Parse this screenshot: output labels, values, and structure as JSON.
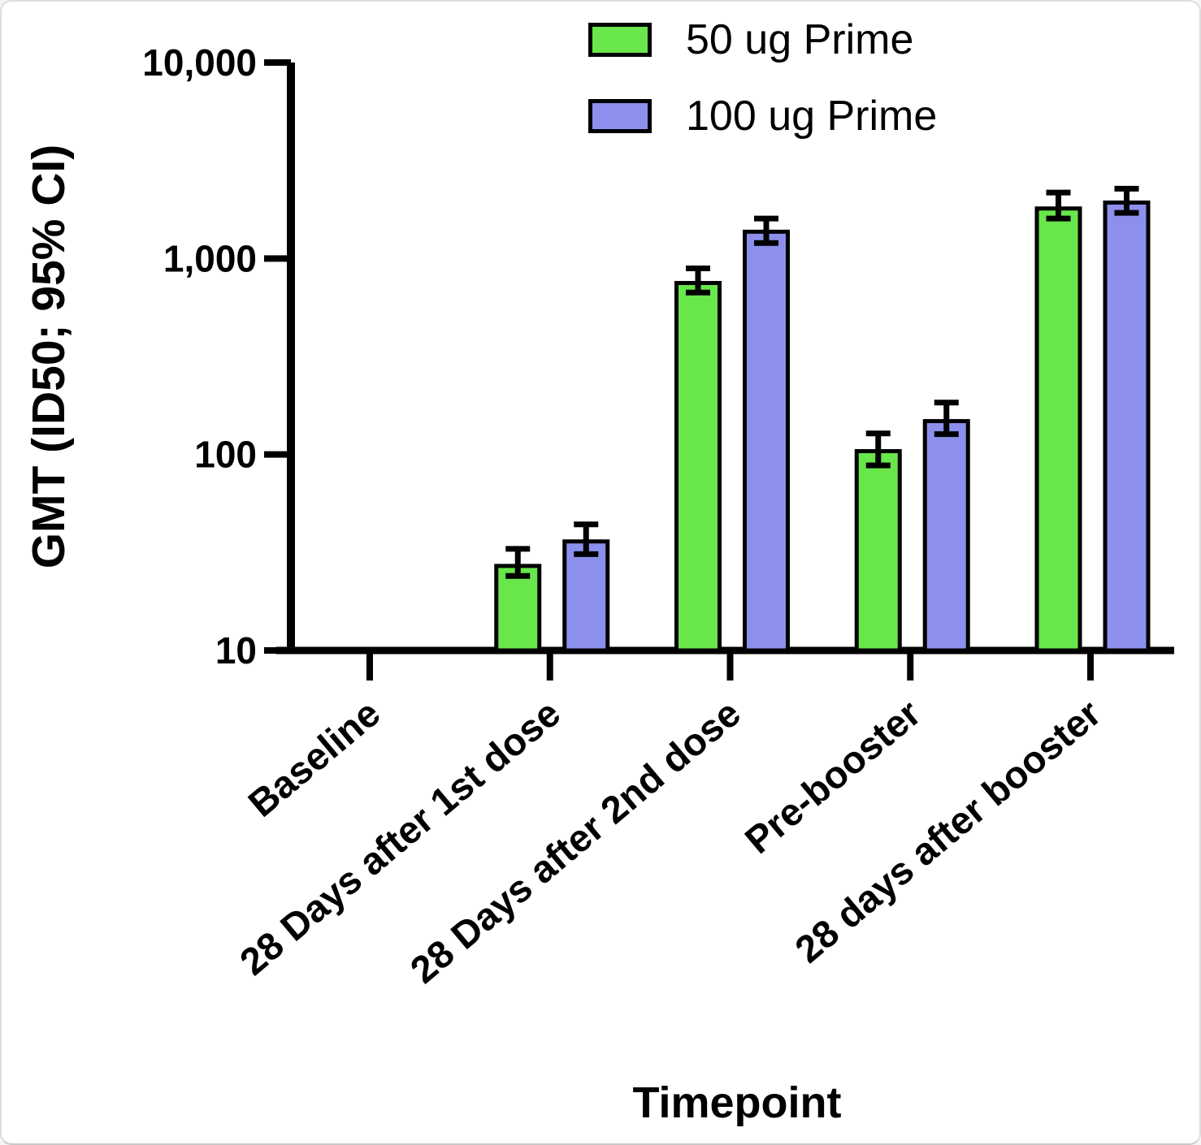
{
  "chart_data": {
    "type": "bar",
    "scale": "log",
    "title": "",
    "xlabel": "Timepoint",
    "ylabel": "GMT (ID50; 95% CI)",
    "ylim": [
      10,
      10000
    ],
    "grid": false,
    "legend_position": "top-center",
    "error_bars": "95% CI",
    "yticks": [
      {
        "value": 10000,
        "label": "10,000"
      },
      {
        "value": 1000,
        "label": "1,000"
      },
      {
        "value": 100,
        "label": "100"
      },
      {
        "value": 10,
        "label": "10"
      }
    ],
    "categories": [
      "Baseline",
      "28 Days after 1st dose",
      "28 Days after 2nd dose",
      "Pre-booster",
      "28 days after booster"
    ],
    "series": [
      {
        "name": "50 ug Prime",
        "color": "#68E64A",
        "values": [
          null,
          27,
          750,
          104,
          1800
        ],
        "ci_low": [
          null,
          24,
          670,
          88,
          1600
        ],
        "ci_high": [
          null,
          33,
          890,
          128,
          2170
        ]
      },
      {
        "name": "100 ug Prime",
        "color": "#8C90EC",
        "values": [
          null,
          36,
          1370,
          148,
          1930
        ],
        "ci_low": [
          null,
          31,
          1200,
          127,
          1710
        ],
        "ci_high": [
          null,
          44,
          1600,
          184,
          2270
        ]
      }
    ]
  }
}
